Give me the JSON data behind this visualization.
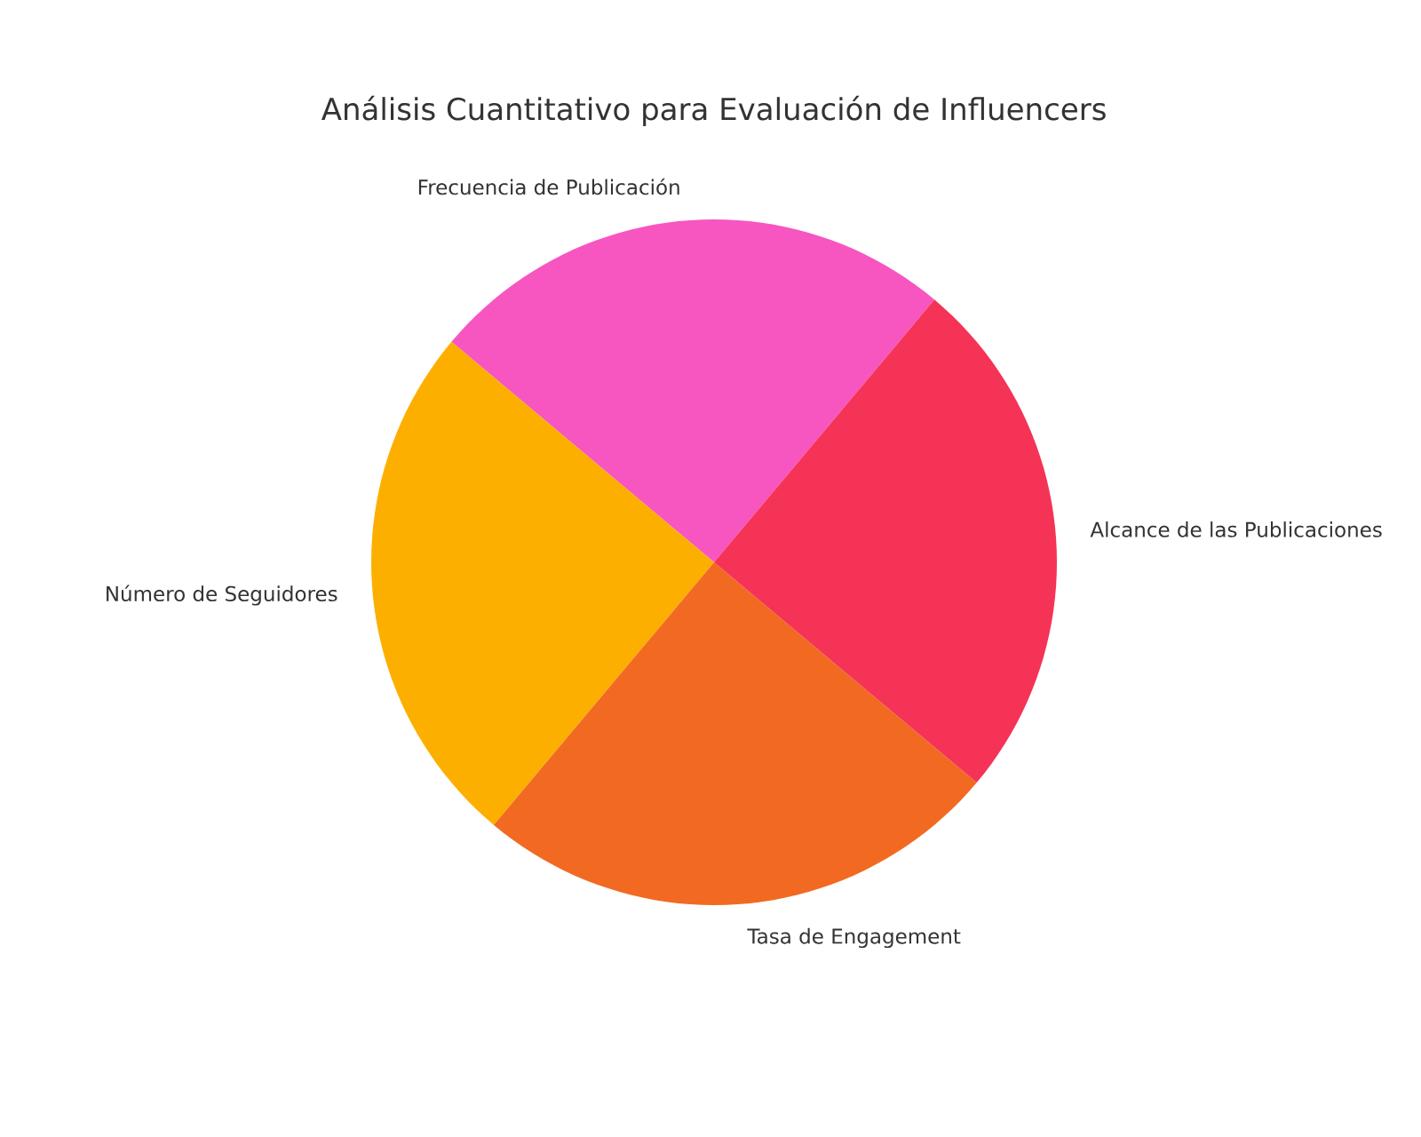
{
  "chart_data": {
    "type": "pie",
    "title": "Análisis Cuantitativo para Evaluación de Influencers",
    "categories": [
      "Frecuencia de Publicación",
      "Número de Seguidores",
      "Tasa de Engagement",
      "Alcance de las Publicaciones"
    ],
    "values": [
      25,
      25,
      25,
      25
    ],
    "colors": [
      "#f756c0",
      "#fdaf00",
      "#f26a22",
      "#f53356"
    ]
  }
}
